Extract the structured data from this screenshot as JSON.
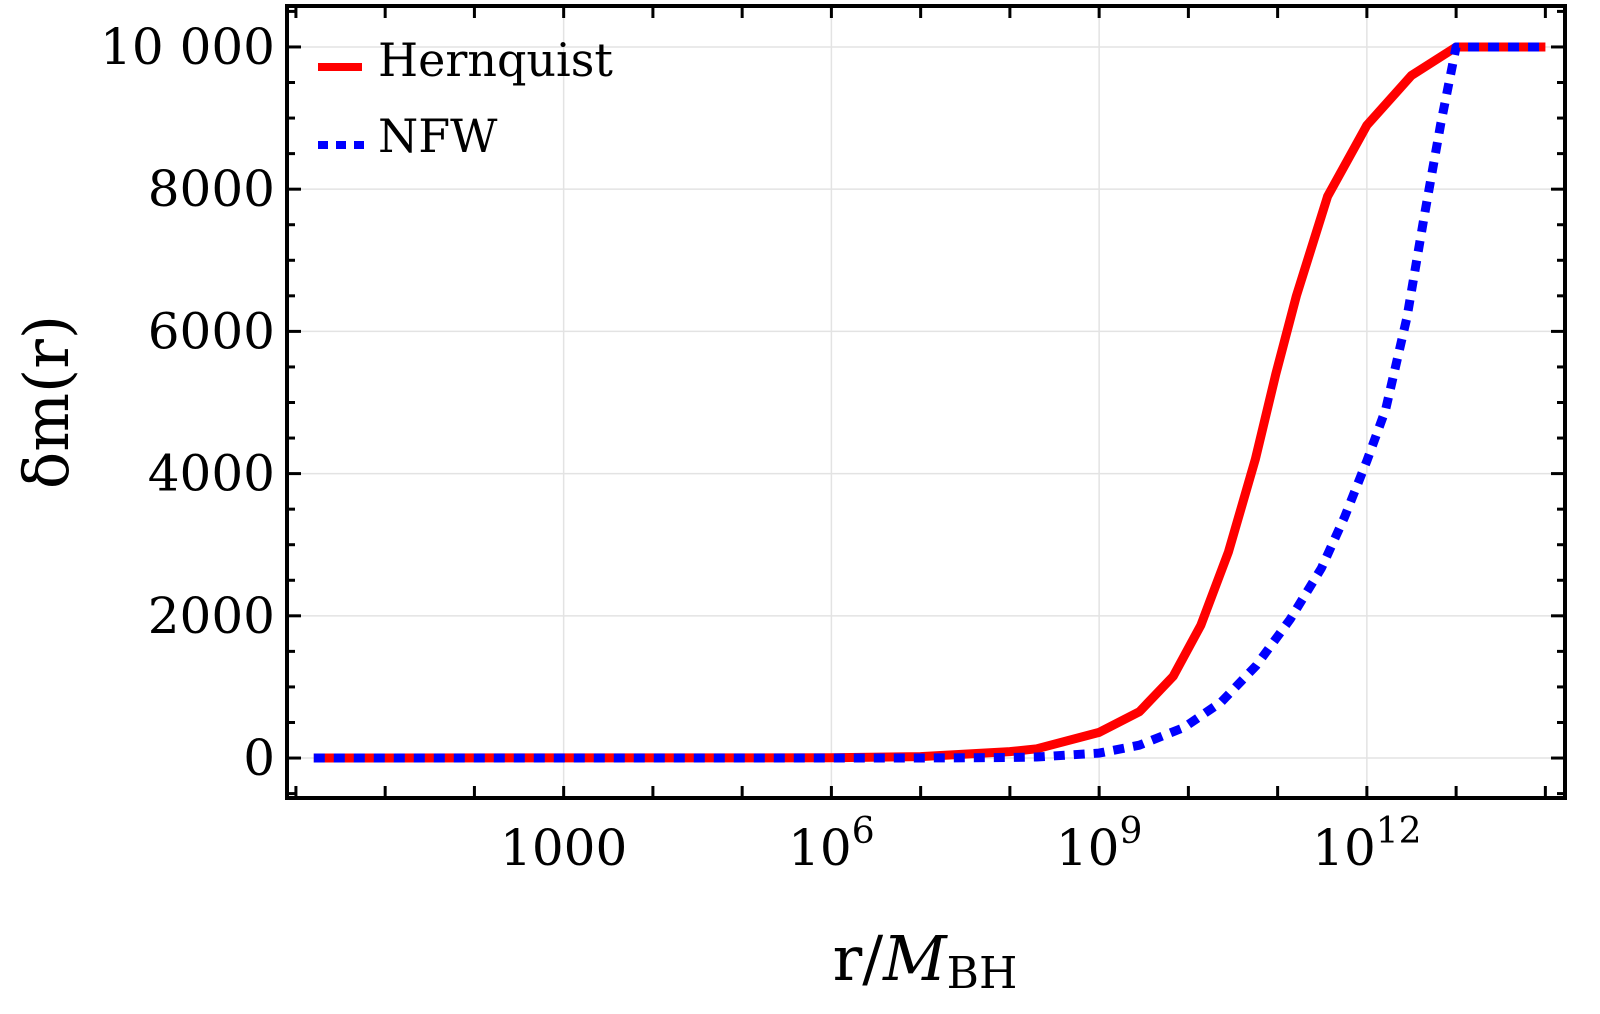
{
  "chart_data": {
    "type": "line",
    "xscale": "log10",
    "xlabel": {
      "base": "r/",
      "italic": "M",
      "sub": "BH"
    },
    "ylabel": "δm(r)",
    "xlim_log10": [
      -0.1,
      14.22
    ],
    "ylim": [
      -562,
      10576
    ],
    "grid": true,
    "legend_placement": "top-left",
    "x_ticks": [
      {
        "log10": 3,
        "base": "1000",
        "exp": ""
      },
      {
        "log10": 6,
        "base": "10",
        "exp": "6"
      },
      {
        "log10": 9,
        "base": "10",
        "exp": "9"
      },
      {
        "log10": 12,
        "base": "10",
        "exp": "12"
      }
    ],
    "y_ticks": [
      {
        "value": 0,
        "label": "0"
      },
      {
        "value": 2000,
        "label": "2000"
      },
      {
        "value": 4000,
        "label": "4000"
      },
      {
        "value": 6000,
        "label": "6000"
      },
      {
        "value": 8000,
        "label": "8000"
      },
      {
        "value": 10000,
        "label": "10 000"
      }
    ],
    "series": [
      {
        "name": "Hernquist",
        "color": "#ff0000",
        "style": "solid",
        "log10_x": [
          0.2,
          6,
          7,
          8,
          8.3,
          9,
          9.45,
          9.83,
          10.14,
          10.45,
          10.75,
          10.98,
          11.21,
          11.56,
          12,
          12.5,
          13,
          14
        ],
        "y": [
          0,
          3,
          20,
          90,
          130,
          360,
          650,
          1150,
          1870,
          2900,
          4200,
          5400,
          6500,
          7900,
          8900,
          9600,
          10000,
          10000
        ]
      },
      {
        "name": "NFW",
        "color": "#0000ff",
        "style": "dotted",
        "log10_x": [
          0.2,
          7,
          8,
          8.3,
          9,
          9.45,
          9.95,
          10.37,
          10.76,
          11.14,
          11.49,
          11.75,
          12,
          12.21,
          12.45,
          12.64,
          12.83,
          13,
          14
        ],
        "y": [
          0,
          1,
          8,
          15,
          70,
          180,
          430,
          790,
          1300,
          1950,
          2670,
          3390,
          4180,
          4900,
          6200,
          7600,
          8930,
          10000,
          10000
        ]
      }
    ]
  }
}
